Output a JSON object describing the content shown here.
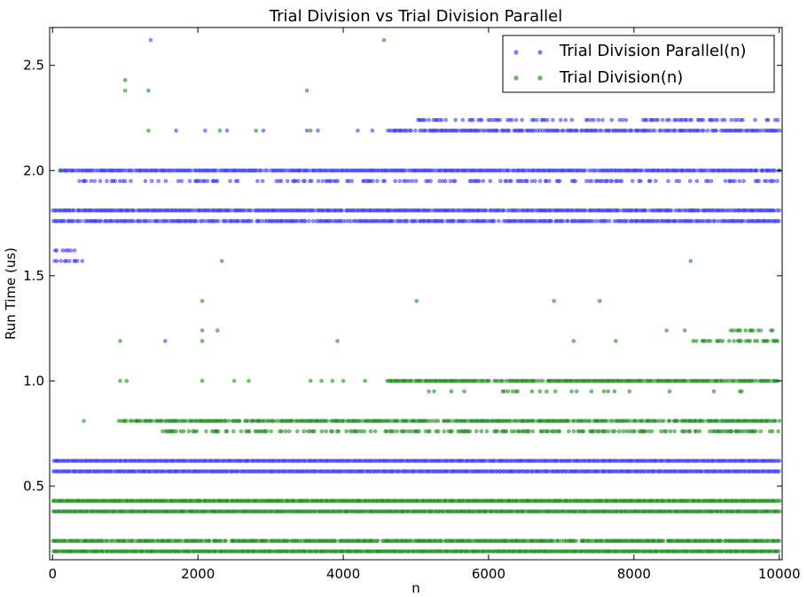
{
  "chart_data": {
    "type": "scatter",
    "title": "Trial Division vs Trial Division Parallel",
    "xlabel": "n",
    "ylabel": "Run Time (us)",
    "xlim": [
      -40,
      10040
    ],
    "ylim": [
      0.15,
      2.68
    ],
    "xticks": [
      "0",
      "2000",
      "4000",
      "6000",
      "8000",
      "10000"
    ],
    "yticks": [
      "0.5",
      "1.0",
      "1.5",
      "2.0",
      "2.5"
    ],
    "grid": false,
    "legend_position": "top-right",
    "series": [
      {
        "name": "Trial Division Parallel(n)",
        "color": "#3333ff",
        "bands": [
          {
            "y": 2.19,
            "from": 4600,
            "to": 10000,
            "density": 0.8
          },
          {
            "y": 2.24,
            "from": 5000,
            "to": 10000,
            "density": 0.35
          },
          {
            "y": 2.0,
            "from": 100,
            "to": 10000,
            "density": 0.95
          },
          {
            "y": 1.95,
            "from": 300,
            "to": 10000,
            "density": 0.4
          },
          {
            "y": 1.81,
            "from": 0,
            "to": 10000,
            "density": 0.95
          },
          {
            "y": 1.76,
            "from": 0,
            "to": 10000,
            "density": 0.85
          },
          {
            "y": 1.62,
            "from": 0,
            "to": 300,
            "density": 0.6
          },
          {
            "y": 1.57,
            "from": 0,
            "to": 450,
            "density": 0.5
          },
          {
            "y": 0.62,
            "from": 0,
            "to": 10000,
            "density": 1.0
          },
          {
            "y": 0.57,
            "from": 0,
            "to": 10000,
            "density": 1.0
          }
        ],
        "outliers": [
          {
            "x": 1350,
            "y": 2.62
          },
          {
            "x": 1550,
            "y": 1.19
          },
          {
            "x": 1700,
            "y": 2.19
          },
          {
            "x": 2100,
            "y": 2.19
          },
          {
            "x": 2400,
            "y": 2.19
          },
          {
            "x": 2900,
            "y": 2.19
          },
          {
            "x": 3500,
            "y": 2.19
          },
          {
            "x": 3650,
            "y": 2.19
          },
          {
            "x": 4200,
            "y": 2.19
          },
          {
            "x": 4400,
            "y": 2.19
          }
        ]
      },
      {
        "name": "Trial Division(n)",
        "color": "#118811",
        "bands": [
          {
            "y": 0.43,
            "from": 0,
            "to": 10000,
            "density": 1.0
          },
          {
            "y": 0.38,
            "from": 0,
            "to": 10000,
            "density": 1.0
          },
          {
            "y": 0.24,
            "from": 0,
            "to": 10000,
            "density": 0.95
          },
          {
            "y": 0.19,
            "from": 0,
            "to": 10000,
            "density": 1.0
          },
          {
            "y": 1.0,
            "from": 4600,
            "to": 10000,
            "density": 0.9
          },
          {
            "y": 0.81,
            "from": 900,
            "to": 10000,
            "density": 0.85
          },
          {
            "y": 0.76,
            "from": 1400,
            "to": 10000,
            "density": 0.45
          },
          {
            "y": 0.95,
            "from": 5000,
            "to": 9500,
            "density": 0.15
          },
          {
            "y": 1.19,
            "from": 8800,
            "to": 10000,
            "density": 0.55
          },
          {
            "y": 1.24,
            "from": 9300,
            "to": 9900,
            "density": 0.45
          }
        ],
        "outliers": [
          {
            "x": 100,
            "y": 2.0
          },
          {
            "x": 1000,
            "y": 2.43
          },
          {
            "x": 1000,
            "y": 2.38
          },
          {
            "x": 1320,
            "y": 2.38
          },
          {
            "x": 1320,
            "y": 2.19
          },
          {
            "x": 4560,
            "y": 2.62
          },
          {
            "x": 3500,
            "y": 2.38
          },
          {
            "x": 3550,
            "y": 2.19
          },
          {
            "x": 2300,
            "y": 2.19
          },
          {
            "x": 2800,
            "y": 2.19
          },
          {
            "x": 2330,
            "y": 1.57
          },
          {
            "x": 2060,
            "y": 1.38
          },
          {
            "x": 2060,
            "y": 1.24
          },
          {
            "x": 2060,
            "y": 1.19
          },
          {
            "x": 2270,
            "y": 1.24
          },
          {
            "x": 930,
            "y": 1.19
          },
          {
            "x": 3920,
            "y": 1.19
          },
          {
            "x": 5010,
            "y": 1.38
          },
          {
            "x": 6900,
            "y": 1.38
          },
          {
            "x": 7530,
            "y": 1.38
          },
          {
            "x": 7170,
            "y": 1.19
          },
          {
            "x": 7750,
            "y": 1.19
          },
          {
            "x": 8780,
            "y": 1.57
          },
          {
            "x": 8450,
            "y": 1.24
          },
          {
            "x": 8700,
            "y": 1.24
          },
          {
            "x": 430,
            "y": 0.81
          },
          {
            "x": 930,
            "y": 1.0
          },
          {
            "x": 1020,
            "y": 1.0
          },
          {
            "x": 2060,
            "y": 1.0
          },
          {
            "x": 2500,
            "y": 1.0
          },
          {
            "x": 2700,
            "y": 1.0
          },
          {
            "x": 3550,
            "y": 1.0
          },
          {
            "x": 3700,
            "y": 1.0
          },
          {
            "x": 3850,
            "y": 1.0
          },
          {
            "x": 4000,
            "y": 1.0
          },
          {
            "x": 4300,
            "y": 1.0
          }
        ]
      }
    ]
  }
}
